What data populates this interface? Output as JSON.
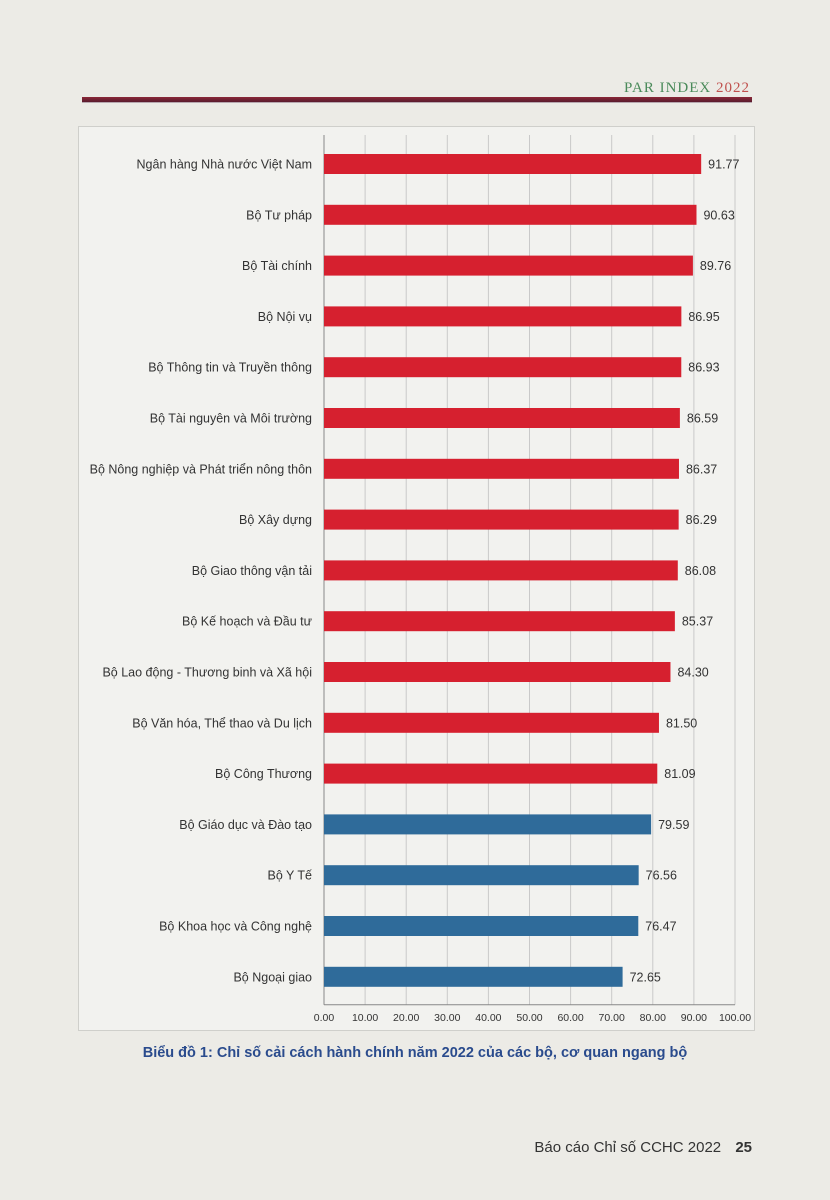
{
  "header": {
    "brand_text": "PAR INDEX",
    "brand_year": "2022"
  },
  "caption": "Biểu đồ 1: Chỉ số cải cách hành chính năm 2022 của các bộ, cơ quan ngang bộ",
  "footer": {
    "report": "Báo cáo Chỉ số CCHC 2022",
    "page": "25"
  },
  "colors": {
    "high": "#d6202f",
    "low": "#2f6b9a"
  },
  "chart_data": {
    "type": "bar",
    "orientation": "horizontal",
    "title": "",
    "categories": [
      "Ngân hàng Nhà nước Việt Nam",
      "Bộ Tư pháp",
      "Bộ Tài chính",
      "Bộ Nội vụ",
      "Bộ Thông tin và Truyền thông",
      "Bộ Tài nguyên và Môi trường",
      "Bộ Nông nghiệp và Phát triển nông thôn",
      "Bộ Xây dựng",
      "Bộ Giao thông vận tải",
      "Bộ Kế hoạch và Đầu tư",
      "Bộ Lao động - Thương binh và Xã hội",
      "Bộ Văn hóa, Thể thao và Du lịch",
      "Bộ Công Thương",
      "Bộ Giáo dục và Đào tạo",
      "Bộ Y Tế",
      "Bộ Khoa học và Công nghệ",
      "Bộ Ngoại giao"
    ],
    "values": [
      91.77,
      90.63,
      89.76,
      86.95,
      86.93,
      86.59,
      86.37,
      86.29,
      86.08,
      85.37,
      84.3,
      81.5,
      81.09,
      79.59,
      76.56,
      76.47,
      72.65
    ],
    "value_labels": [
      "91.77",
      "90.63",
      "89.76",
      "86.95",
      "86.93",
      "86.59",
      "86.37",
      "86.29",
      "86.08",
      "85.37",
      "84.30",
      "81.50",
      "81.09",
      "79.59",
      "76.56",
      "76.47",
      "72.65"
    ],
    "bar_groups": [
      "high",
      "high",
      "high",
      "high",
      "high",
      "high",
      "high",
      "high",
      "high",
      "high",
      "high",
      "high",
      "high",
      "low",
      "low",
      "low",
      "low"
    ],
    "xlim": [
      0,
      100
    ],
    "xticks": [
      "0.00",
      "10.00",
      "20.00",
      "30.00",
      "40.00",
      "50.00",
      "60.00",
      "70.00",
      "80.00",
      "90.00",
      "100.00"
    ],
    "grid": "vertical",
    "xlabel": "",
    "ylabel": ""
  }
}
